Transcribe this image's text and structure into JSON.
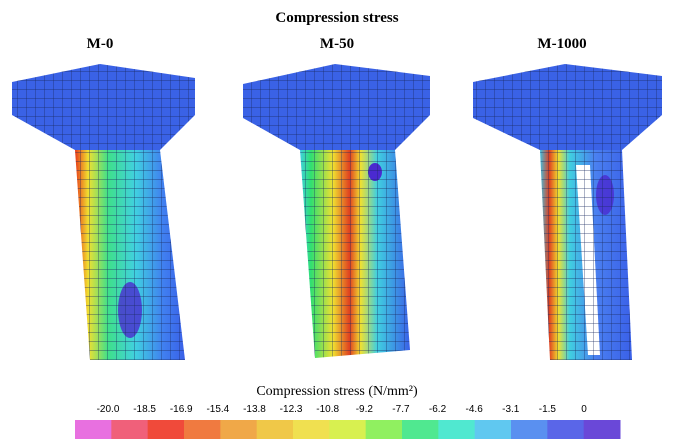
{
  "figure": {
    "title": "Compression stress",
    "panels": [
      {
        "label": "M-0"
      },
      {
        "label": "M-50"
      },
      {
        "label": "M-1000"
      }
    ],
    "colorbar": {
      "title": "Compression stress (N/mm²)",
      "ticks": [
        "-20.0",
        "-18.5",
        "-16.9",
        "-15.4",
        "-13.8",
        "-12.3",
        "-10.8",
        "-9.2",
        "-7.7",
        "-6.2",
        "-4.6",
        "-3.1",
        "-1.5",
        "0"
      ]
    }
  }
}
